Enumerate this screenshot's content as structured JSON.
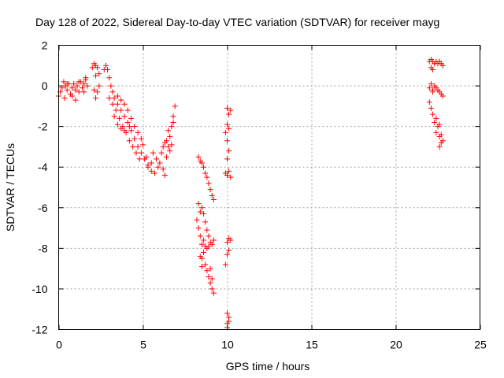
{
  "chart_data": {
    "type": "scatter",
    "title": "Day 128 of 2022, Sidereal Day-to-day VTEC variation (SDTVAR) for receiver mayg",
    "xlabel": "GPS time / hours",
    "ylabel": "SDTVAR / TECUs",
    "xlim": [
      0,
      25
    ],
    "ylim": [
      -12,
      2
    ],
    "xticks": [
      0,
      5,
      10,
      15,
      20,
      25
    ],
    "yticks": [
      2,
      0,
      -2,
      -4,
      -6,
      -8,
      -10,
      -12
    ],
    "xtick_labels": [
      "0",
      "5",
      "10",
      "15",
      "20",
      "25"
    ],
    "ytick_labels": [
      "2",
      "0",
      "-2",
      "-4",
      "-6",
      "-8",
      "-10",
      "-12"
    ],
    "grid": true,
    "marker": "+",
    "marker_color": "#ff0000",
    "series": [
      {
        "name": "SDTVAR",
        "points": [
          [
            0.0,
            -0.5
          ],
          [
            0.1,
            -0.3
          ],
          [
            0.2,
            -0.1
          ],
          [
            0.3,
            0.2
          ],
          [
            0.35,
            -0.6
          ],
          [
            0.4,
            0.0
          ],
          [
            0.5,
            -0.2
          ],
          [
            0.6,
            0.1
          ],
          [
            0.7,
            -0.4
          ],
          [
            0.8,
            -0.1
          ],
          [
            0.9,
            0.1
          ],
          [
            1.0,
            -0.2
          ],
          [
            1.0,
            -0.7
          ],
          [
            1.1,
            0.0
          ],
          [
            1.2,
            -0.3
          ],
          [
            1.3,
            0.2
          ],
          [
            1.4,
            -0.1
          ],
          [
            1.5,
            0.1
          ],
          [
            1.6,
            0.3
          ],
          [
            1.7,
            0.0
          ],
          [
            1.5,
            -0.3
          ],
          [
            1.2,
            0.2
          ],
          [
            0.8,
            -0.5
          ],
          [
            0.5,
            0.1
          ],
          [
            1.6,
            0.4
          ],
          [
            2.0,
            0.9
          ],
          [
            2.1,
            1.1
          ],
          [
            2.2,
            1.0
          ],
          [
            2.3,
            0.9
          ],
          [
            2.4,
            0.6
          ],
          [
            2.2,
            0.5
          ],
          [
            2.1,
            -0.2
          ],
          [
            2.2,
            -0.6
          ],
          [
            2.3,
            -0.3
          ],
          [
            2.4,
            0.0
          ],
          [
            2.7,
            0.8
          ],
          [
            2.8,
            1.0
          ],
          [
            2.9,
            0.8
          ],
          [
            3.0,
            0.4
          ],
          [
            3.1,
            0.0
          ],
          [
            3.2,
            -0.3
          ],
          [
            3.3,
            -0.6
          ],
          [
            3.5,
            -0.9
          ],
          [
            3.7,
            -1.2
          ],
          [
            3.9,
            -1.5
          ],
          [
            4.1,
            -1.8
          ],
          [
            4.3,
            -2.2
          ],
          [
            4.5,
            -2.6
          ],
          [
            4.7,
            -3.0
          ],
          [
            4.9,
            -3.3
          ],
          [
            5.1,
            -3.6
          ],
          [
            5.3,
            -3.9
          ],
          [
            5.5,
            -4.2
          ],
          [
            5.7,
            -4.3
          ],
          [
            3.0,
            -0.6
          ],
          [
            3.2,
            -0.9
          ],
          [
            3.4,
            -1.2
          ],
          [
            3.6,
            -1.6
          ],
          [
            3.8,
            -2.0
          ],
          [
            4.0,
            -2.3
          ],
          [
            4.2,
            -2.7
          ],
          [
            4.4,
            -3.0
          ],
          [
            4.6,
            -3.3
          ],
          [
            4.8,
            -3.6
          ],
          [
            3.5,
            -0.5
          ],
          [
            3.7,
            -0.7
          ],
          [
            3.9,
            -0.9
          ],
          [
            4.1,
            -1.2
          ],
          [
            4.3,
            -1.6
          ],
          [
            4.5,
            -2.0
          ],
          [
            4.7,
            -2.3
          ],
          [
            4.9,
            -2.6
          ],
          [
            5.0,
            -2.9
          ],
          [
            3.3,
            -1.5
          ],
          [
            3.5,
            -1.9
          ],
          [
            3.7,
            -2.1
          ],
          [
            3.9,
            -2.2
          ],
          [
            4.2,
            -2.0
          ],
          [
            5.2,
            -3.5
          ],
          [
            5.3,
            -4.0
          ],
          [
            5.5,
            -3.8
          ],
          [
            5.6,
            -3.3
          ],
          [
            5.8,
            -3.6
          ],
          [
            5.9,
            -4.0
          ],
          [
            6.0,
            -3.8
          ],
          [
            6.2,
            -4.1
          ],
          [
            6.3,
            -4.4
          ],
          [
            6.4,
            -3.5
          ],
          [
            6.5,
            -3.0
          ],
          [
            6.6,
            -2.5
          ],
          [
            6.7,
            -2.0
          ],
          [
            6.8,
            -1.5
          ],
          [
            6.9,
            -1.0
          ],
          [
            6.3,
            -2.8
          ],
          [
            6.5,
            -2.2
          ],
          [
            6.6,
            -3.2
          ],
          [
            6.7,
            -2.9
          ],
          [
            6.2,
            -3.0
          ],
          [
            6.1,
            -3.3
          ],
          [
            6.8,
            -1.8
          ],
          [
            6.4,
            -2.7
          ],
          [
            8.3,
            -3.5
          ],
          [
            8.4,
            -3.7
          ],
          [
            8.5,
            -3.8
          ],
          [
            8.6,
            -4.0
          ],
          [
            8.7,
            -4.3
          ],
          [
            8.8,
            -4.5
          ],
          [
            8.9,
            -4.8
          ],
          [
            9.0,
            -5.1
          ],
          [
            9.1,
            -5.4
          ],
          [
            9.2,
            -5.6
          ],
          [
            8.3,
            -5.8
          ],
          [
            8.4,
            -6.2
          ],
          [
            8.5,
            -6.0
          ],
          [
            8.6,
            -6.3
          ],
          [
            8.7,
            -6.7
          ],
          [
            8.8,
            -7.1
          ],
          [
            8.9,
            -7.4
          ],
          [
            9.0,
            -7.7
          ],
          [
            9.1,
            -7.8
          ],
          [
            9.2,
            -7.6
          ],
          [
            8.2,
            -6.6
          ],
          [
            8.3,
            -7.0
          ],
          [
            8.4,
            -7.4
          ],
          [
            8.5,
            -7.8
          ],
          [
            8.6,
            -7.6
          ],
          [
            8.7,
            -7.9
          ],
          [
            8.8,
            -8.0
          ],
          [
            8.9,
            -7.9
          ],
          [
            8.5,
            -8.5
          ],
          [
            8.6,
            -8.2
          ],
          [
            8.7,
            -8.8
          ],
          [
            8.8,
            -9.1
          ],
          [
            8.9,
            -9.4
          ],
          [
            9.0,
            -9.7
          ],
          [
            9.1,
            -10.0
          ],
          [
            9.2,
            -10.2
          ],
          [
            9.0,
            -9.0
          ],
          [
            9.1,
            -9.5
          ],
          [
            8.4,
            -8.4
          ],
          [
            8.5,
            -8.9
          ],
          [
            10.0,
            -1.1
          ],
          [
            10.1,
            -1.4
          ],
          [
            10.0,
            -1.9
          ],
          [
            9.9,
            -2.3
          ],
          [
            10.0,
            -2.7
          ],
          [
            10.1,
            -2.1
          ],
          [
            10.2,
            -1.2
          ],
          [
            10.1,
            -3.2
          ],
          [
            10.0,
            -3.6
          ],
          [
            9.9,
            -4.3
          ],
          [
            10.0,
            -4.4
          ],
          [
            10.1,
            -4.2
          ],
          [
            10.2,
            -4.5
          ],
          [
            10.0,
            -7.7
          ],
          [
            10.1,
            -8.1
          ],
          [
            10.0,
            -8.3
          ],
          [
            9.9,
            -8.8
          ],
          [
            10.1,
            -7.5
          ],
          [
            10.2,
            -7.6
          ],
          [
            10.0,
            -11.2
          ],
          [
            10.1,
            -11.6
          ],
          [
            10.0,
            -11.9
          ],
          [
            10.1,
            -11.4
          ],
          [
            10.0,
            -11.7
          ],
          [
            22.0,
            1.2
          ],
          [
            22.1,
            1.3
          ],
          [
            22.2,
            1.2
          ],
          [
            22.3,
            1.1
          ],
          [
            22.4,
            1.2
          ],
          [
            22.5,
            1.1
          ],
          [
            22.6,
            1.2
          ],
          [
            22.7,
            1.1
          ],
          [
            22.8,
            1.0
          ],
          [
            22.1,
            0.9
          ],
          [
            22.2,
            0.8
          ],
          [
            22.0,
            -0.1
          ],
          [
            22.1,
            0.1
          ],
          [
            22.2,
            -0.2
          ],
          [
            22.3,
            0.0
          ],
          [
            22.4,
            -0.1
          ],
          [
            22.5,
            -0.2
          ],
          [
            22.6,
            -0.3
          ],
          [
            22.7,
            -0.4
          ],
          [
            22.8,
            -0.5
          ],
          [
            22.2,
            -0.3
          ],
          [
            22.0,
            -0.8
          ],
          [
            22.1,
            -1.1
          ],
          [
            22.2,
            -1.4
          ],
          [
            22.3,
            -1.8
          ],
          [
            22.4,
            -1.6
          ],
          [
            22.5,
            -2.0
          ],
          [
            22.6,
            -1.9
          ],
          [
            22.4,
            -2.3
          ],
          [
            22.6,
            -2.5
          ],
          [
            22.7,
            -2.8
          ],
          [
            22.8,
            -2.7
          ],
          [
            22.6,
            -3.0
          ],
          [
            22.7,
            -2.4
          ]
        ]
      }
    ]
  }
}
